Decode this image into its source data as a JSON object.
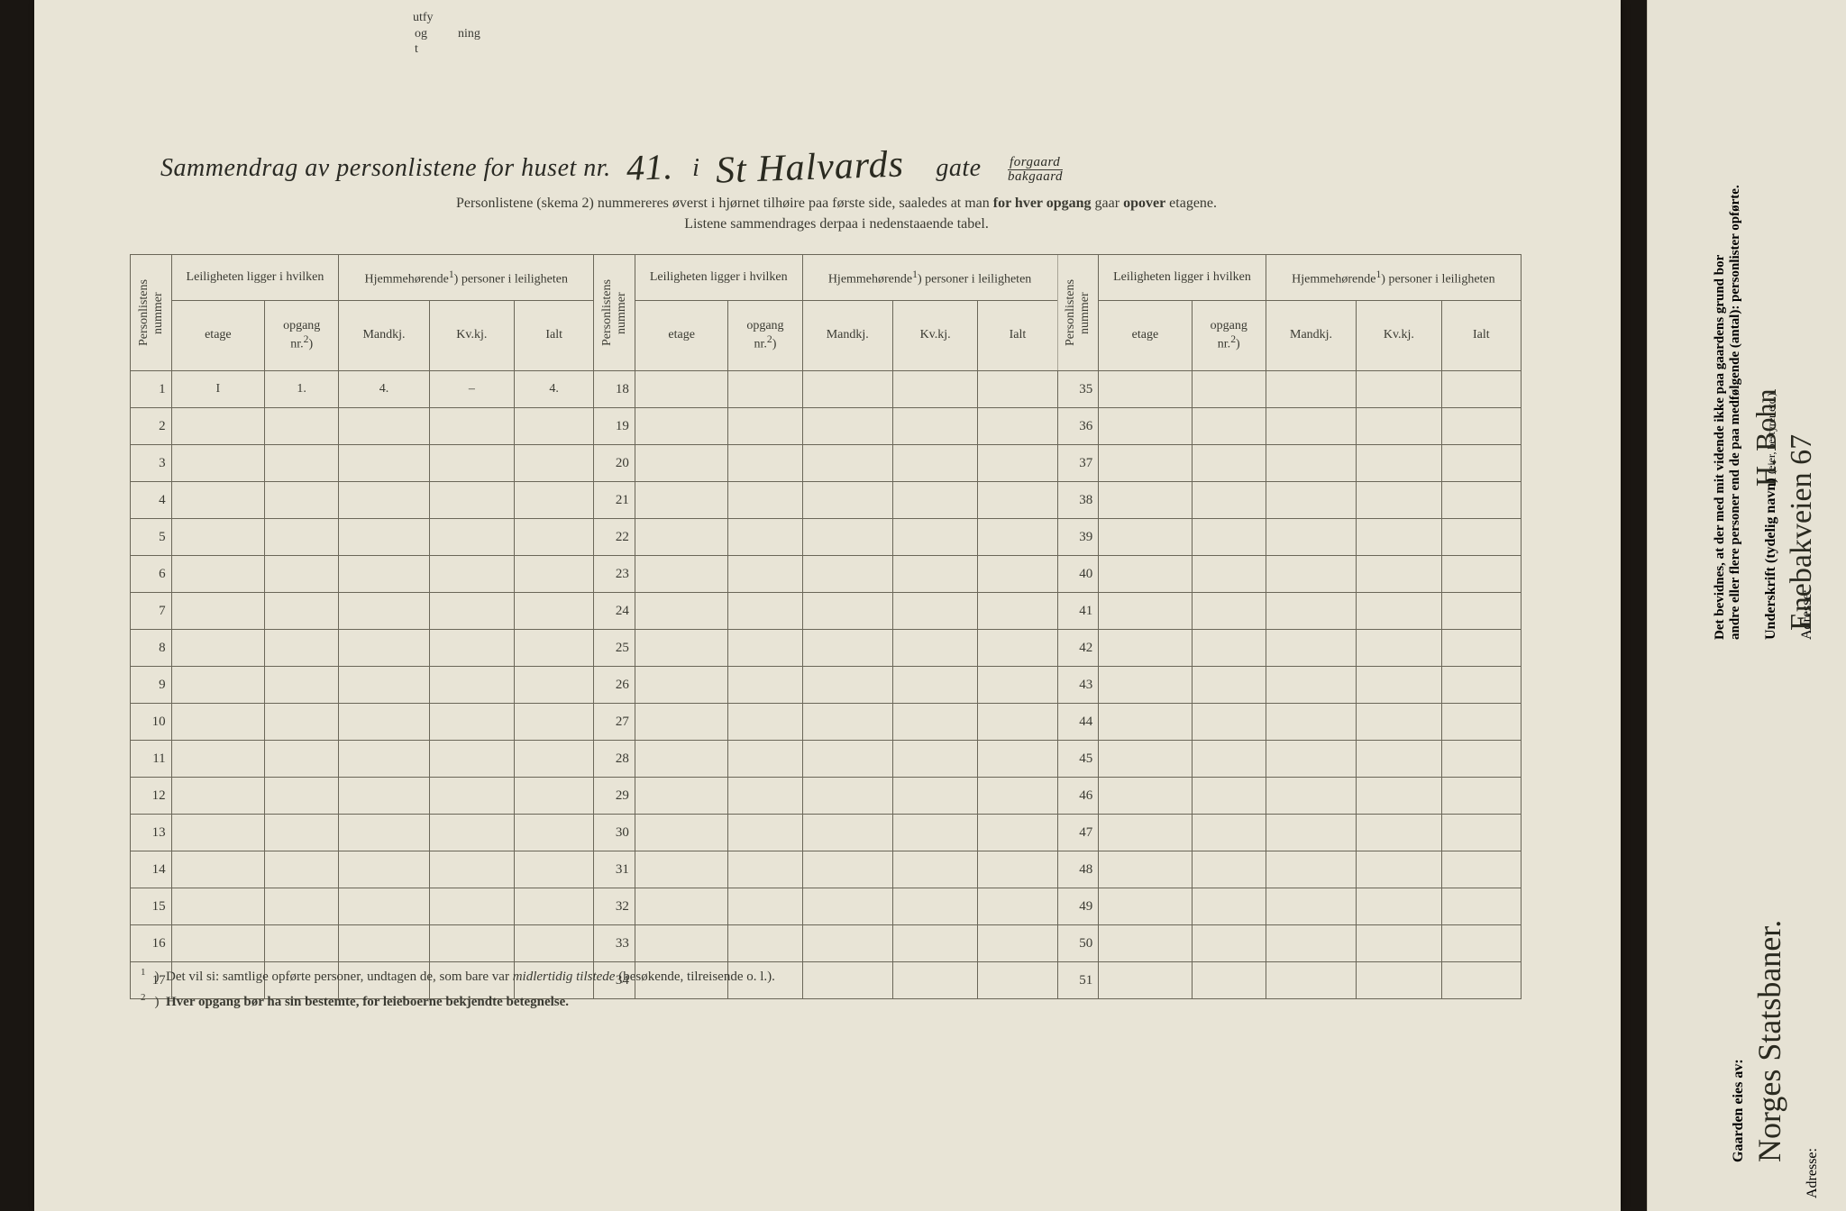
{
  "top_fragments": {
    "a": "utfy",
    "b": "og t",
    "c": "ning"
  },
  "title": {
    "prefix": "Sammendrag av personlistene for huset nr.",
    "house_nr_hand": "41.",
    "i": "i",
    "street_hand": "St  Halvards",
    "gate": "gate",
    "forgaard": "forgaard",
    "bakgaard": "bakgaard"
  },
  "subtitle": {
    "line1a": "Personlistene (skema 2) nummereres øverst i hjørnet tilhøire paa første side, saaledes at man ",
    "line1b": "for hver opgang",
    "line1c": " gaar ",
    "line1d": "opover",
    "line1e": " etagene.",
    "line2": "Listene sammendrages derpaa i nedenstaaende tabel."
  },
  "headers": {
    "personlistens_nummer": "Personlistens nummer",
    "leilighet_group": "Leiligheten ligger i hvilken",
    "hjemme_group_a": "Hjemmehørende",
    "sup1": "1",
    "hjemme_group_b": ") personer i leiligheten",
    "etage": "etage",
    "opgang_a": "opgang",
    "opgang_b": "nr.",
    "sup2": "2",
    "opgang_c": ")",
    "mandkj": "Mandkj.",
    "kvkj": "Kv.kj.",
    "ialt": "Ialt"
  },
  "row_numbers_col1": [
    1,
    2,
    3,
    4,
    5,
    6,
    7,
    8,
    9,
    10,
    11,
    12,
    13,
    14,
    15,
    16,
    17
  ],
  "row_numbers_col2": [
    18,
    19,
    20,
    21,
    22,
    23,
    24,
    25,
    26,
    27,
    28,
    29,
    30,
    31,
    32,
    33,
    34
  ],
  "row_numbers_col3": [
    35,
    36,
    37,
    38,
    39,
    40,
    41,
    42,
    43,
    44,
    45,
    46,
    47,
    48,
    49,
    50,
    51
  ],
  "row1": {
    "etage": "I",
    "opgang": "1.",
    "mandkj": "4.",
    "kvkj": "–",
    "ialt": "4."
  },
  "footnotes": {
    "f1": "Det vil si: samtlige opførte personer, undtagen de, som bare var ",
    "f1i": "midlertidig tilstede",
    "f1b": " (besøkende, tilreisende o. l.).",
    "f2": "Hver opgang bør ha sin bestemte, for leieboerne bekjendte betegnelse."
  },
  "right": {
    "bevidnes1": "Det bevidnes, at der med mit vidende ikke paa gaardens grund bor",
    "bevidnes2": "andre eller flere personer end de paa medfølgende (antal):",
    "bevidnes3": "personlister opførte.",
    "underskrift_lbl": "Underskrift (tydelig navn)",
    "bestyrer": "(eier, bestyrer etc.)",
    "sign_hand": "H. Bohn",
    "adresse_lbl": "Adresse:",
    "adresse_hand": "Enebakveien 67",
    "owner_lbl": "Gaarden eies av:",
    "owner_hand": "Norges Statsbaner."
  },
  "style": {
    "page_bg": "#e8e4d6",
    "ink": "#2a2a24",
    "rule": "#6a6658",
    "title_fontsize": 28,
    "body_fontsize": 15,
    "hand_fontsize": 40
  }
}
